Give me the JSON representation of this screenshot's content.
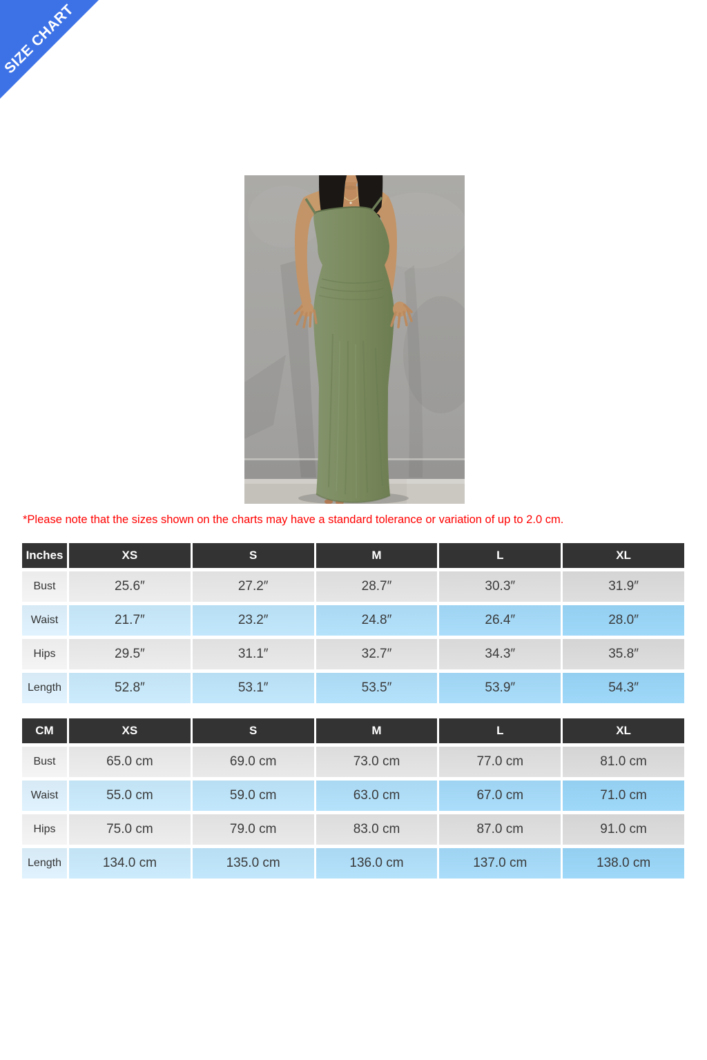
{
  "banner": {
    "label": "SIZE CHART"
  },
  "photo": {
    "description": "model-wearing-green-slip-maxi-dress"
  },
  "note": "*Please note that the sizes shown on the charts may have a standard tolerance or variation of up to 2.0 cm.",
  "colors": {
    "banner_blue": "#3d72e7",
    "header_bg": "#333333",
    "note_red": "#ff0000",
    "row_gray": "#e8e8e8",
    "row_blue": "#aedff9",
    "dress_green": "#7b8b5e"
  },
  "chart_data": [
    {
      "type": "table",
      "unit_label": "Inches",
      "columns": [
        "XS",
        "S",
        "M",
        "L",
        "XL"
      ],
      "rows": [
        {
          "label": "Bust",
          "values": [
            "25.6″",
            "27.2″",
            "28.7″",
            "30.3″",
            "31.9″"
          ]
        },
        {
          "label": "Waist",
          "values": [
            "21.7″",
            "23.2″",
            "24.8″",
            "26.4″",
            "28.0″"
          ]
        },
        {
          "label": "Hips",
          "values": [
            "29.5″",
            "31.1″",
            "32.7″",
            "34.3″",
            "35.8″"
          ]
        },
        {
          "label": "Length",
          "values": [
            "52.8″",
            "53.1″",
            "53.5″",
            "53.9″",
            "54.3″"
          ]
        }
      ]
    },
    {
      "type": "table",
      "unit_label": "CM",
      "columns": [
        "XS",
        "S",
        "M",
        "L",
        "XL"
      ],
      "rows": [
        {
          "label": "Bust",
          "values": [
            "65.0 cm",
            "69.0 cm",
            "73.0 cm",
            "77.0 cm",
            "81.0 cm"
          ]
        },
        {
          "label": "Waist",
          "values": [
            "55.0 cm",
            "59.0 cm",
            "63.0 cm",
            "67.0 cm",
            "71.0 cm"
          ]
        },
        {
          "label": "Hips",
          "values": [
            "75.0 cm",
            "79.0 cm",
            "83.0 cm",
            "87.0 cm",
            "91.0 cm"
          ]
        },
        {
          "label": "Length",
          "values": [
            "134.0 cm",
            "135.0 cm",
            "136.0 cm",
            "137.0 cm",
            "138.0 cm"
          ]
        }
      ]
    }
  ]
}
